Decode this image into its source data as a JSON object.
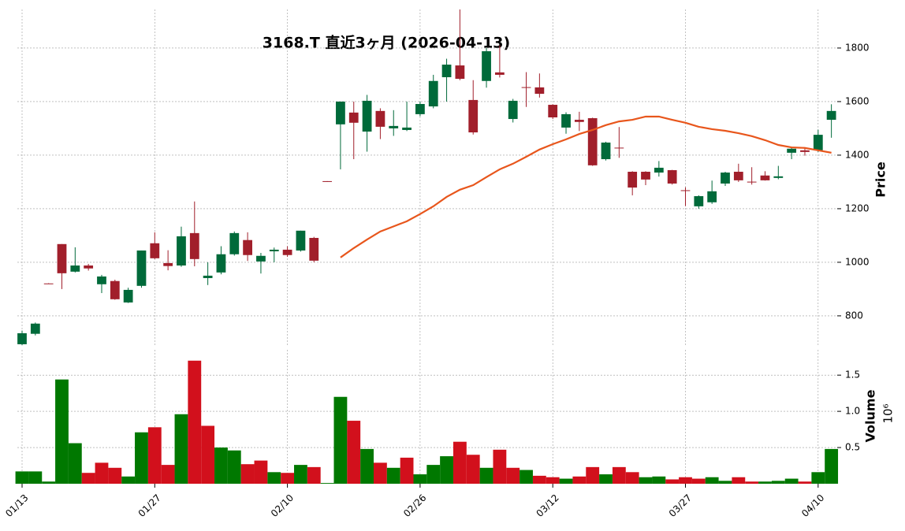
{
  "chart_data": {
    "type": "candlestick",
    "title": "3168.T  直近3ヶ月  (2026-04-13)",
    "ylabel": "Price",
    "volume_ylabel": "Volume",
    "volume_offset_label": "10⁶",
    "categories": [
      "01/13",
      null,
      null,
      null,
      null,
      null,
      null,
      null,
      null,
      null,
      "01/27",
      null,
      null,
      null,
      null,
      null,
      null,
      null,
      null,
      null,
      "02/10",
      null,
      null,
      null,
      null,
      null,
      null,
      null,
      null,
      null,
      "02/26",
      null,
      null,
      null,
      null,
      null,
      null,
      null,
      null,
      null,
      "03/12",
      null,
      null,
      null,
      null,
      null,
      null,
      null,
      null,
      null,
      "03/27",
      null,
      null,
      null,
      null,
      null,
      null,
      null,
      null,
      null,
      "04/10",
      null
    ],
    "open": [
      694,
      733,
      921,
      1068,
      965,
      988,
      918,
      930,
      850,
      912,
      1071,
      997,
      988,
      1109,
      941,
      962,
      1030,
      1083,
      1003,
      1041,
      1047,
      1044,
      1091,
      1303,
      1515,
      1559,
      1488,
      1565,
      1500,
      1494,
      1553,
      1582,
      1691,
      1735,
      1606,
      1677,
      1709,
      1535,
      1654,
      1653,
      1588,
      1503,
      1532,
      1538,
      1385,
      1428,
      1338,
      1338,
      1335,
      1344,
      1269,
      1209,
      1224,
      1294,
      1338,
      1301,
      1324,
      1315,
      1409,
      1418,
      1418,
      1532
    ],
    "high": [
      745,
      775,
      922,
      1068,
      1056,
      994,
      953,
      935,
      905,
      1044,
      1112,
      1045,
      1133,
      1227,
      1000,
      1060,
      1115,
      1112,
      1035,
      1055,
      1060,
      1118,
      1095,
      1303,
      1600,
      1600,
      1625,
      1575,
      1568,
      1600,
      1600,
      1700,
      1760,
      1944,
      1680,
      1800,
      1810,
      1610,
      1710,
      1705,
      1590,
      1560,
      1562,
      1540,
      1450,
      1505,
      1340,
      1340,
      1378,
      1345,
      1280,
      1250,
      1305,
      1338,
      1368,
      1355,
      1340,
      1360,
      1430,
      1425,
      1495,
      1590
    ],
    "low": [
      690,
      727,
      919,
      900,
      962,
      969,
      885,
      860,
      848,
      905,
      1012,
      970,
      983,
      985,
      915,
      955,
      1025,
      1005,
      958,
      1000,
      1020,
      1040,
      1000,
      1300,
      1347,
      1385,
      1413,
      1460,
      1472,
      1490,
      1545,
      1575,
      1600,
      1680,
      1477,
      1652,
      1690,
      1522,
      1580,
      1615,
      1535,
      1480,
      1490,
      1360,
      1380,
      1390,
      1250,
      1288,
      1320,
      1290,
      1210,
      1200,
      1218,
      1285,
      1300,
      1290,
      1305,
      1310,
      1385,
      1398,
      1412,
      1465
    ],
    "close": [
      735,
      771,
      920,
      959,
      988,
      977,
      947,
      862,
      897,
      1044,
      1015,
      986,
      1097,
      1012,
      950,
      1030,
      1109,
      1027,
      1024,
      1047,
      1027,
      1118,
      1006,
      1300,
      1600,
      1521,
      1603,
      1506,
      1509,
      1503,
      1591,
      1677,
      1738,
      1685,
      1485,
      1788,
      1700,
      1603,
      1652,
      1629,
      1541,
      1553,
      1524,
      1362,
      1447,
      1426,
      1279,
      1309,
      1353,
      1294,
      1267,
      1247,
      1265,
      1335,
      1306,
      1299,
      1306,
      1321,
      1424,
      1412,
      1476,
      1565
    ],
    "moving_average": [
      null,
      null,
      null,
      null,
      null,
      null,
      null,
      null,
      null,
      null,
      null,
      null,
      null,
      null,
      null,
      null,
      null,
      null,
      null,
      null,
      null,
      null,
      null,
      null,
      1018,
      1053,
      1085,
      1115,
      1134,
      1153,
      1180,
      1209,
      1244,
      1271,
      1288,
      1318,
      1347,
      1368,
      1394,
      1421,
      1441,
      1459,
      1479,
      1494,
      1512,
      1526,
      1532,
      1544,
      1544,
      1532,
      1521,
      1506,
      1497,
      1491,
      1482,
      1471,
      1456,
      1438,
      1429,
      1427,
      1418,
      1409
    ],
    "volume": [
      0.17,
      0.17,
      0.03,
      1.44,
      0.56,
      0.15,
      0.29,
      0.22,
      0.1,
      0.71,
      0.78,
      0.26,
      0.96,
      1.7,
      0.8,
      0.5,
      0.46,
      0.27,
      0.32,
      0.16,
      0.15,
      0.26,
      0.23,
      0.01,
      1.2,
      0.87,
      0.48,
      0.29,
      0.22,
      0.36,
      0.13,
      0.26,
      0.38,
      0.58,
      0.4,
      0.22,
      0.47,
      0.22,
      0.19,
      0.11,
      0.09,
      0.07,
      0.1,
      0.23,
      0.13,
      0.23,
      0.16,
      0.09,
      0.1,
      0.06,
      0.09,
      0.07,
      0.09,
      0.04,
      0.09,
      0.03,
      0.03,
      0.04,
      0.07,
      0.03,
      0.16,
      0.48
    ],
    "up_color": "#006a3a",
    "down_color": "#a11f2b",
    "volume_up_color": "#007800",
    "volume_down_color": "#d2101c",
    "ma_color": "#e8561c",
    "ylim": [
      685,
      1944
    ],
    "yticks": [
      800,
      1000,
      1200,
      1400,
      1600,
      1800
    ],
    "volume_ylim": [
      0,
      1.85
    ],
    "volume_yticks": [
      0.5,
      {
        "value": 1,
        "label": "1.0"
      },
      1.5
    ],
    "grid": true
  }
}
